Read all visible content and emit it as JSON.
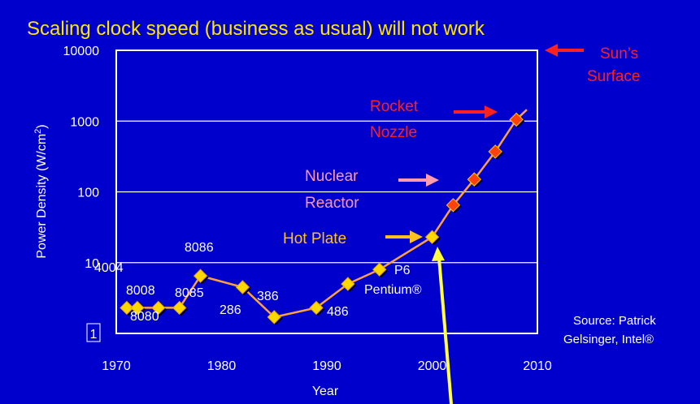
{
  "chart_data": {
    "type": "line",
    "title": "Scaling clock speed (business as usual) will not work",
    "xlabel": "Year",
    "ylabel": "Power Density (W/cm",
    "ylabel_sup": "2",
    "ylabel_close": ")",
    "yscale": "log",
    "xlim": [
      1970,
      2010
    ],
    "ylim": [
      1,
      10000
    ],
    "x_ticks": [
      1970,
      1980,
      1990,
      2000,
      2010
    ],
    "y_ticks": [
      {
        "value": 1,
        "label": "1"
      },
      {
        "value": 10,
        "label": "10"
      },
      {
        "value": 100,
        "label": "100"
      },
      {
        "value": 1000,
        "label": "1000"
      },
      {
        "value": 10000,
        "label": "10000"
      }
    ],
    "grid": "horizontal",
    "series": [
      {
        "x": [
          1971,
          1972,
          1974,
          1976,
          1978,
          1982,
          1985,
          1989,
          1992,
          1995,
          2000,
          2002,
          2004,
          2006,
          2008,
          2009
        ],
        "y": [
          2.3,
          2.3,
          2.3,
          2.3,
          6.5,
          4.5,
          1.7,
          2.3,
          5,
          8,
          23,
          65,
          150,
          370,
          1050,
          1450
        ],
        "markers": [
          "yellow",
          "yellow",
          "yellow",
          "yellow",
          "yellow",
          "yellow",
          "yellow",
          "yellow",
          "yellow",
          "yellow",
          "yellow",
          "red",
          "red",
          "red",
          "red",
          "none"
        ]
      }
    ],
    "point_labels": [
      {
        "text": "4004",
        "x": 1971,
        "y": 2.3
      },
      {
        "text": "8008",
        "x": 1972,
        "y": 2.3
      },
      {
        "text": "8080",
        "x": 1974,
        "y": 2.3
      },
      {
        "text": "8085",
        "x": 1976,
        "y": 2.3
      },
      {
        "text": "8086",
        "x": 1978,
        "y": 6.5
      },
      {
        "text": "286",
        "x": 1982,
        "y": 4.5
      },
      {
        "text": "386",
        "x": 1985,
        "y": 1.7
      },
      {
        "text": "486",
        "x": 1989,
        "y": 2.3
      },
      {
        "text": "P6",
        "x": 1995,
        "y": 8
      },
      {
        "text": "Pentium®",
        "x": 1995,
        "y": 8
      }
    ],
    "annotations": [
      {
        "lines": [
          "Sun’s",
          "Surface"
        ],
        "color": "#ff2020",
        "arrow_color": "#ff2020"
      },
      {
        "lines": [
          "Rocket",
          "Nozzle"
        ],
        "color": "#ff2020",
        "arrow_color": "#ff2020"
      },
      {
        "lines": [
          "Nuclear",
          "Reactor"
        ],
        "color": "#ff9ab0",
        "arrow_color": "#ff9ab0"
      },
      {
        "lines": [
          "Hot Plate"
        ],
        "color": "#ffc020",
        "arrow_color": "#ffc020"
      }
    ],
    "source_lines": [
      "Source: Patrick",
      "Gelsinger, Intel®"
    ],
    "colors": {
      "background": "#0000cc",
      "title": "#ffe600",
      "text": "#ffffff",
      "line": "#ffa040",
      "marker_yellow": "#ffd700",
      "marker_red": "#ff4010",
      "grid": "#ffffff",
      "yellow_arrow": "#ffff40"
    }
  }
}
